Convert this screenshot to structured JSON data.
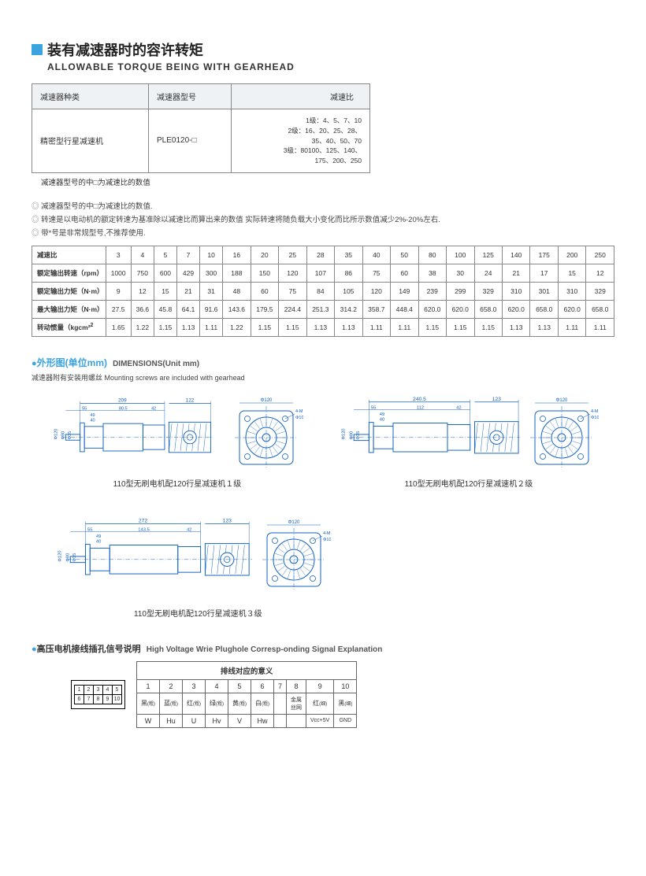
{
  "header": {
    "title_cn": "装有减速器时的容许转矩",
    "title_en": "ALLOWABLE TORQUE BEING WITH GEARHEAD"
  },
  "table1": {
    "h1": "减速器种类",
    "h2": "减速器型号",
    "h3": "减速比",
    "r1": "精密型行星减速机",
    "r2": "PLE0120-□",
    "r3a": "1级：4、5、7、10",
    "r3b": "2级：16、20、25、28、",
    "r3c": "35、40、50、70",
    "r3d": "3级：80100、125、140、",
    "r3e": "175、200、250"
  },
  "note1": "减速器型号的中□为减速比的数值",
  "bullets": {
    "b1": "减速器型号的中□为减速比的数值.",
    "b2": "转速是以电动机的额定转速为基准除以减速比而算出来的数值 实际转速将随负载大小变化而比所示数值减少2%-20%左右.",
    "b3": "带*号是非常规型号,不推荐使用."
  },
  "table2": {
    "row_labels": [
      "减速比",
      "额定输出转速（rpm）",
      "额定输出力矩（N·m）",
      "最大输出力矩（N·m）",
      "转动惯量（kgcm²"
    ],
    "ratios": [
      "3",
      "4",
      "5",
      "7",
      "10",
      "16",
      "20",
      "25",
      "28",
      "35",
      "40",
      "50",
      "80",
      "100",
      "125",
      "140",
      "175",
      "200",
      "250"
    ],
    "rpm": [
      "1000",
      "750",
      "600",
      "429",
      "300",
      "188",
      "150",
      "120",
      "107",
      "86",
      "75",
      "60",
      "38",
      "30",
      "24",
      "21",
      "17",
      "15",
      "12"
    ],
    "torque": [
      "9",
      "12",
      "15",
      "21",
      "31",
      "48",
      "60",
      "75",
      "84",
      "105",
      "120",
      "149",
      "239",
      "299",
      "329",
      "310",
      "301",
      "310",
      "329"
    ],
    "maxt": [
      "27.5",
      "36.6",
      "45.8",
      "64.1",
      "91.6",
      "143.6",
      "179.5",
      "224.4",
      "251.3",
      "314.2",
      "358.7",
      "448.4",
      "620.0",
      "620.0",
      "658.0",
      "620.0",
      "658.0",
      "620.0",
      "658.0"
    ],
    "inertia": [
      "1.65",
      "1.22",
      "1.15",
      "1.13",
      "1.11",
      "1.22",
      "1.15",
      "1.15",
      "1.13",
      "1.13",
      "1.11",
      "1.11",
      "1.15",
      "1.15",
      "1.15",
      "1.13",
      "1.13",
      "1.11",
      "1.11"
    ]
  },
  "section2": {
    "dot": "●",
    "title_cn": "外形图(单位mm)",
    "title_en": "DIMENSIONS(Unit mm)",
    "sub": "减速器附有安装用螺丝 Mounting screws are included with gearhead",
    "cap1": "110型无刷电机配120行星减速机１级",
    "cap2": "110型无刷电机配120行星减速机２级",
    "cap3": "110型无刷电机配120行星减速机３级"
  },
  "dims": {
    "d1": {
      "total_len": "209",
      "total_right": "122",
      "seg1": "55",
      "seg2": "80.5",
      "seg3": "42",
      "hseg1": "49",
      "hseg2": "40",
      "left": "Φ120",
      "shaft1": "Φ80",
      "shaft2": "Φ35",
      "face": "Φ120",
      "mount": "4-M10T20",
      "bc": "Φ100"
    },
    "d2": {
      "total_len": "240.5",
      "total_right": "123",
      "seg1": "55",
      "seg2": "112",
      "seg3": "42",
      "hseg1": "49",
      "hseg2": "40",
      "left": "Φ120",
      "shaft1": "Φ80",
      "shaft2": "Φ35",
      "face": "Φ120",
      "mount": "4-M10T20",
      "bc": "Φ100"
    },
    "d3": {
      "total_len": "272",
      "total_right": "123",
      "seg1": "55",
      "seg2": "143.5",
      "seg3": "42",
      "hseg1": "49",
      "hseg2": "40",
      "left": "Φ120",
      "shaft1": "Φ80",
      "shaft2": "Φ35",
      "face": "Φ120",
      "mount": "4-M10T20",
      "bc": "Φ100"
    }
  },
  "section3": {
    "dot": "●",
    "title_cn": "高压电机接线插孔信号说明",
    "title_en": "High Voltage Wrie Plughole Corresp-onding Signal Explanation",
    "hdr": "排线对应的意义",
    "nums": [
      "1",
      "2",
      "3",
      "4",
      "5",
      "6",
      "7",
      "8",
      "9",
      "10"
    ],
    "wires": [
      "黑",
      "蓝",
      "红",
      "绿",
      "黄",
      "白",
      "",
      "金属丝网",
      "红",
      "黑"
    ],
    "wire_suffix": "(粗)",
    "wire_suffix_thin": "(细)",
    "sigs": [
      "W",
      "Hu",
      "U",
      "Hv",
      "V",
      "Hw",
      "",
      "",
      "Vcc+5V",
      "GND"
    ]
  }
}
